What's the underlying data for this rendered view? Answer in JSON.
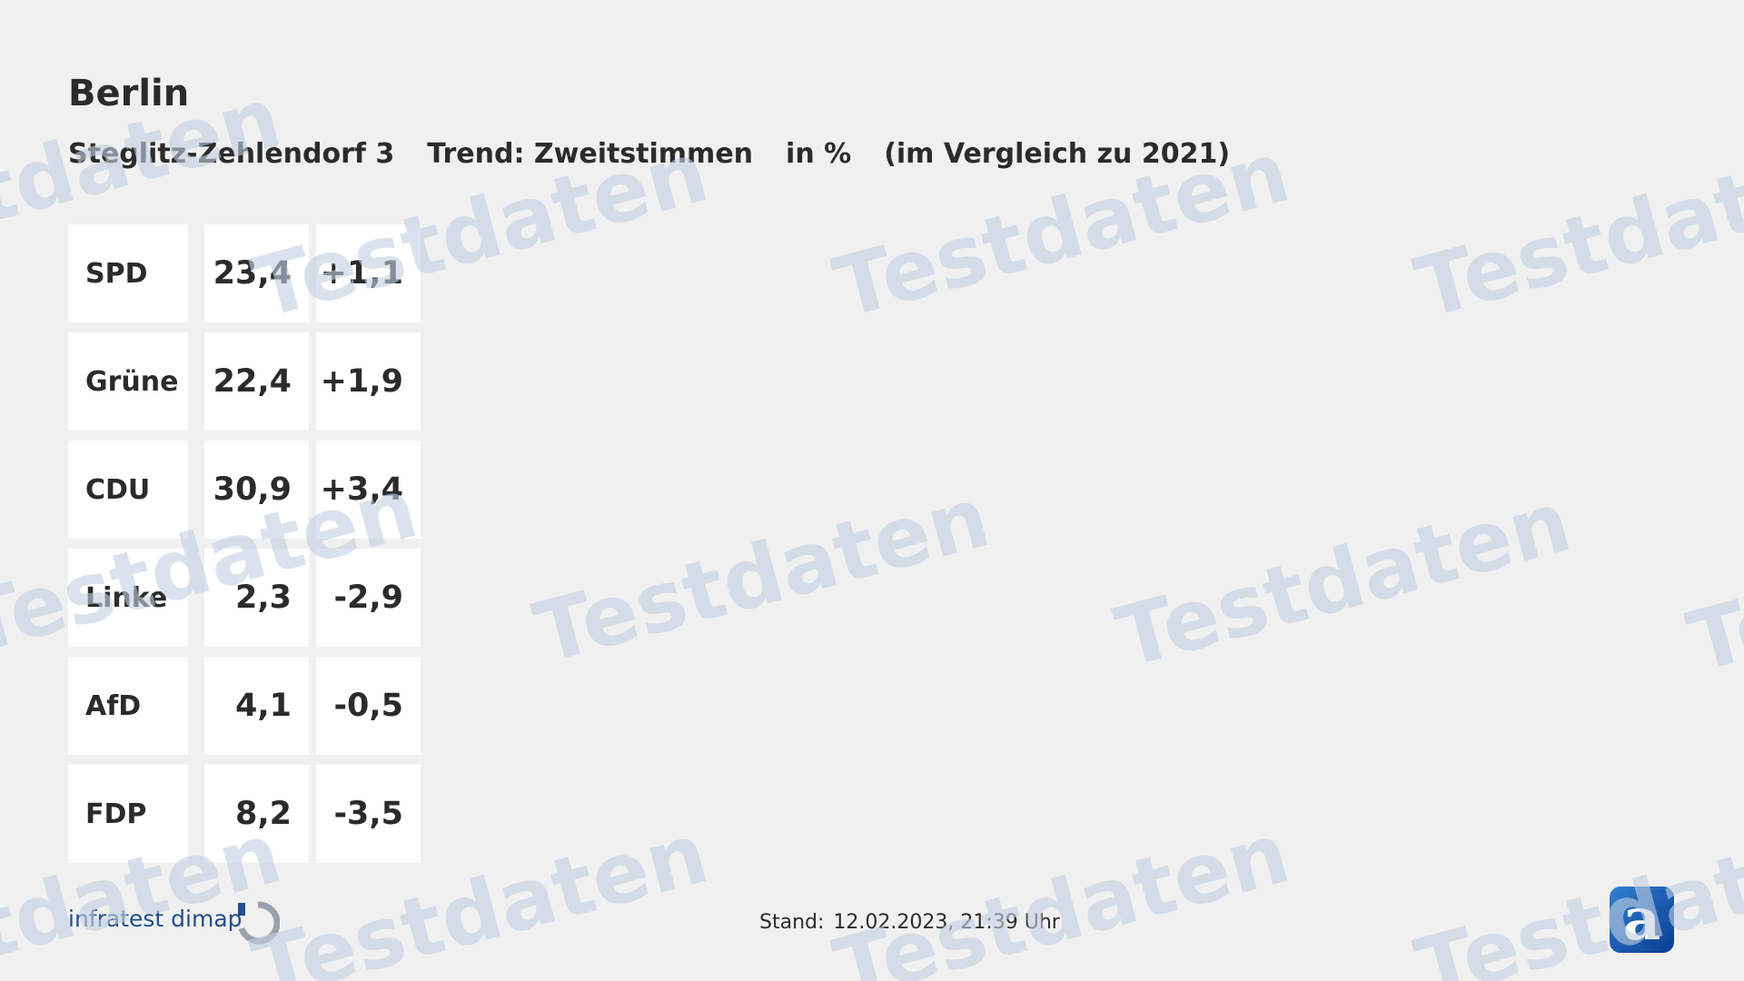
{
  "header": {
    "title": "Berlin",
    "district": "Steglitz-Zehlendorf 3",
    "trend": "Trend: Zweitstimmen",
    "unit": "in %",
    "comparison": "(im Vergleich zu 2021)"
  },
  "table": {
    "rows": [
      [
        "SPD",
        "23,4",
        "+1,1"
      ],
      [
        "Grüne",
        "22,4",
        "+1,9"
      ],
      [
        "CDU",
        "30,9",
        "+3,4"
      ],
      [
        "Linke",
        "2,3",
        "-2,9"
      ],
      [
        "AfD",
        "4,1",
        "-0,5"
      ],
      [
        "FDP",
        "8,2",
        "-3,5"
      ]
    ]
  },
  "footer": {
    "source": "infratest dimap",
    "stand_label": "Stand:",
    "stand_value": "12.02.2023, 21:39 Uhr"
  },
  "watermark": "Testdaten",
  "logo": "a"
}
